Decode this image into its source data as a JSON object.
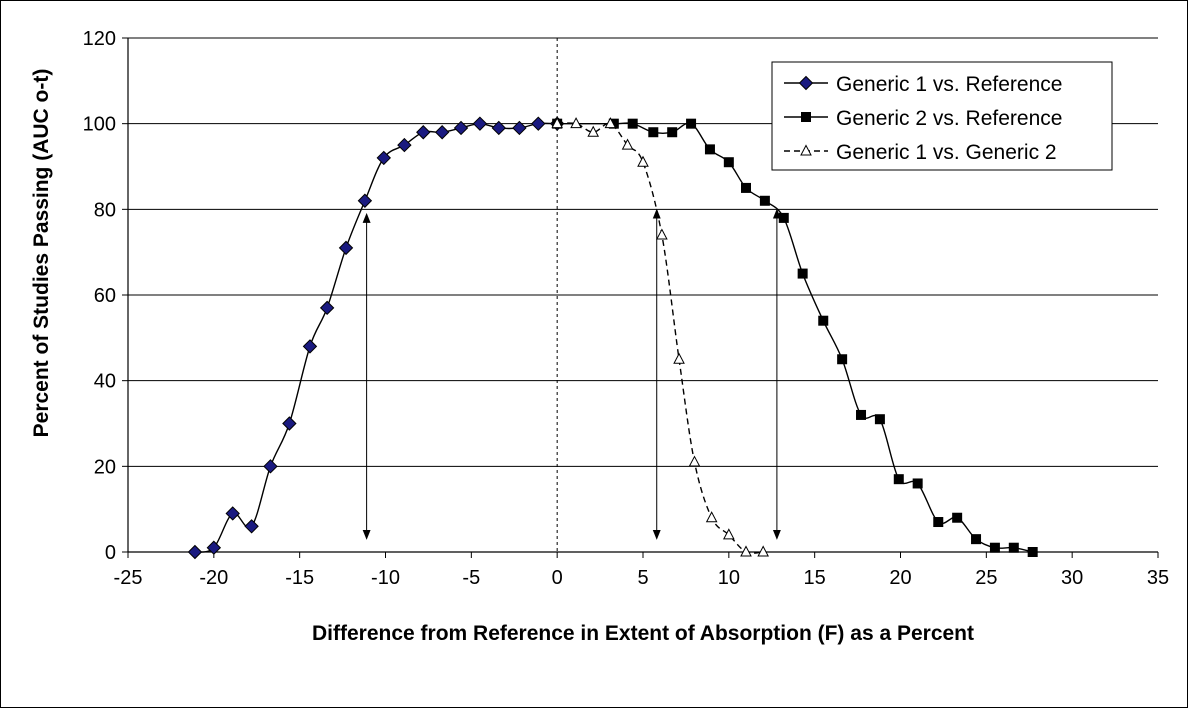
{
  "chart_data": {
    "type": "line",
    "title": "",
    "xlabel": "Difference from Reference in Extent of Absorption (F) as a Percent",
    "ylabel": "Percent of Studies Passing (AUC o-t)",
    "xlim": [
      -25,
      35
    ],
    "ylim": [
      0,
      120
    ],
    "xticks": [
      "-25",
      "-20",
      "-15",
      "-10",
      "-5",
      "0",
      "5",
      "10",
      "15",
      "20",
      "25",
      "30",
      "35"
    ],
    "yticks": [
      "0",
      "20",
      "40",
      "60",
      "80",
      "100",
      "120"
    ],
    "grid": "horizontal",
    "legend_position": "top-right",
    "reference_line_x": 0,
    "series": [
      {
        "name": "Generic 1 vs. Reference",
        "marker": "diamond",
        "line": "solid",
        "color": "#1a1a80",
        "x": [
          -21.1,
          -20.0,
          -18.9,
          -17.8,
          -16.7,
          -15.6,
          -14.4,
          -13.4,
          -12.3,
          -11.2,
          -10.1,
          -8.9,
          -7.8,
          -6.7,
          -5.6,
          -4.5,
          -3.4,
          -2.2,
          -1.1,
          0.0
        ],
        "y": [
          0,
          1,
          9,
          6,
          20,
          30,
          48,
          57,
          71,
          82,
          92,
          95,
          98,
          98,
          99,
          100,
          99,
          99,
          100,
          100
        ]
      },
      {
        "name": "Generic 2 vs. Reference",
        "marker": "square",
        "line": "solid",
        "color": "#000000",
        "x": [
          0.0,
          3.3,
          4.4,
          5.6,
          6.7,
          7.8,
          8.9,
          10.0,
          11.0,
          12.1,
          13.2,
          14.3,
          15.5,
          16.6,
          17.7,
          18.8,
          19.9,
          21.0,
          22.2,
          23.3,
          24.4,
          25.5,
          26.6,
          27.7
        ],
        "y": [
          100,
          100,
          100,
          98,
          98,
          100,
          94,
          91,
          85,
          82,
          78,
          65,
          54,
          45,
          32,
          31,
          17,
          16,
          7,
          8,
          3,
          1,
          1,
          0
        ]
      },
      {
        "name": "Generic 1 vs. Generic 2",
        "marker": "triangle",
        "line": "dashed",
        "color": "#000000",
        "x": [
          0.0,
          1.1,
          2.1,
          3.1,
          4.1,
          5.0,
          6.1,
          7.1,
          8.0,
          9.0,
          10.0,
          11.0,
          12.0
        ],
        "y": [
          100,
          100,
          98,
          100,
          95,
          91,
          74,
          45,
          21,
          8,
          4,
          0,
          0
        ]
      }
    ],
    "annotations": [
      {
        "type": "double-arrow",
        "x": -11.1,
        "y_from": 4,
        "y_to": 78
      },
      {
        "type": "double-arrow",
        "x": 5.8,
        "y_from": 4,
        "y_to": 79
      },
      {
        "type": "double-arrow",
        "x": 12.8,
        "y_from": 4,
        "y_to": 79
      }
    ]
  }
}
